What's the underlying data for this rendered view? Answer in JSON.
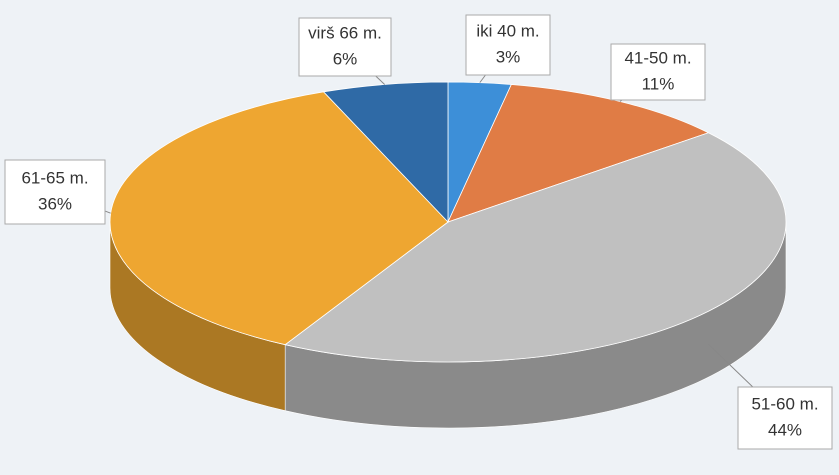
{
  "chart_data": {
    "type": "pie",
    "categories": [
      "iki 40 m.",
      "41-50 m.",
      "51-60 m.",
      "61-65 m.",
      "virš 66 m."
    ],
    "values": [
      3,
      11,
      44,
      36,
      6
    ],
    "value_labels": [
      "3%",
      "11%",
      "44%",
      "36%",
      "6%"
    ],
    "colors": [
      "#3d8fd8",
      "#e07c45",
      "#c0c0c0",
      "#eea631",
      "#2f6aa6"
    ]
  }
}
